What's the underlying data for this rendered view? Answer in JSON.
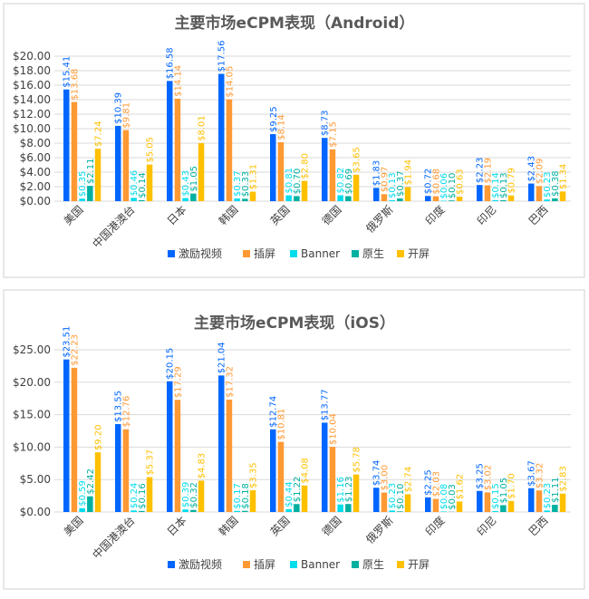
{
  "colors": [
    "#0066ff",
    "#ff9933",
    "#00dded",
    "#00b0a0",
    "#ffc000"
  ],
  "chart_data": [
    {
      "type": "bar",
      "title": "主要市场eCPM表现（Android）",
      "categories": [
        "美国",
        "中国港澳台",
        "日本",
        "韩国",
        "英国",
        "德国",
        "俄罗斯",
        "印度",
        "印尼",
        "巴西"
      ],
      "ylim": [
        0,
        20
      ],
      "yticks": [
        "$0.00",
        "$2.00",
        "$4.00",
        "$6.00",
        "$8.00",
        "$10.00",
        "$12.00",
        "$14.00",
        "$16.00",
        "$18.00",
        "$20.00"
      ],
      "grid": true,
      "legend": "bottom",
      "series": [
        {
          "name": "激励视频",
          "values": [
            15.41,
            10.39,
            16.58,
            17.56,
            9.25,
            8.73,
            1.83,
            0.72,
            2.23,
            2.43
          ]
        },
        {
          "name": "插屏",
          "values": [
            13.68,
            9.81,
            14.14,
            14.05,
            8.14,
            7.15,
            0.97,
            0.68,
            2.19,
            2.09
          ]
        },
        {
          "name": "Banner",
          "values": [
            0.35,
            0.46,
            0.43,
            0.37,
            0.81,
            0.82,
            0.13,
            0.06,
            0.14,
            0.23
          ]
        },
        {
          "name": "原生",
          "values": [
            2.11,
            0.14,
            1.05,
            0.33,
            0.7,
            0.69,
            0.37,
            0.1,
            0.13,
            0.38
          ]
        },
        {
          "name": "开屏",
          "values": [
            7.24,
            5.05,
            8.01,
            1.31,
            2.8,
            3.65,
            1.94,
            0.63,
            0.79,
            1.34
          ]
        }
      ]
    },
    {
      "type": "bar",
      "title": "主要市场eCPM表现（iOS）",
      "categories": [
        "美国",
        "中国港澳台",
        "日本",
        "韩国",
        "英国",
        "德国",
        "俄罗斯",
        "印度",
        "印尼",
        "巴西"
      ],
      "ylim": [
        0,
        25
      ],
      "yticks": [
        "$0.00",
        "$5.00",
        "$10.00",
        "$15.00",
        "$20.00",
        "$25.00"
      ],
      "grid": true,
      "legend": "bottom",
      "series": [
        {
          "name": "激励视频",
          "values": [
            23.51,
            13.55,
            20.15,
            21.04,
            12.74,
            13.77,
            3.74,
            2.25,
            3.25,
            3.67
          ]
        },
        {
          "name": "插屏",
          "values": [
            22.23,
            12.76,
            17.29,
            17.32,
            10.81,
            10.04,
            3.0,
            2.03,
            3.02,
            3.32
          ]
        },
        {
          "name": "Banner",
          "values": [
            0.59,
            0.24,
            0.39,
            0.17,
            0.44,
            1.16,
            0.23,
            0.08,
            0.15,
            0.23
          ]
        },
        {
          "name": "原生",
          "values": [
            2.42,
            0.16,
            0.32,
            0.18,
            1.22,
            1.23,
            0.1,
            0.03,
            1.05,
            1.11
          ]
        },
        {
          "name": "开屏",
          "values": [
            9.2,
            5.37,
            4.83,
            3.35,
            4.08,
            5.78,
            2.74,
            1.62,
            1.7,
            2.83
          ]
        }
      ]
    }
  ]
}
